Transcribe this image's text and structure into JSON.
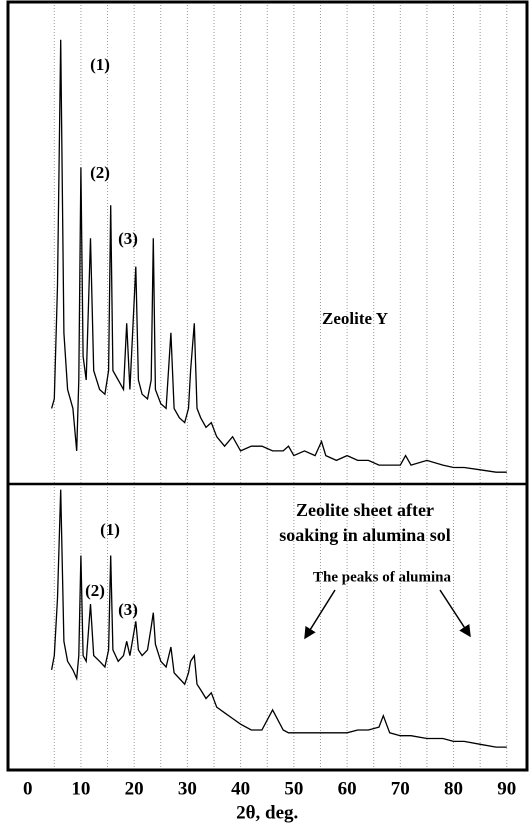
{
  "chart_data": [
    {
      "type": "line",
      "label": "Zeolite Y",
      "annotations": [
        "(1)",
        "(2)",
        "(3)"
      ],
      "color": "#000000",
      "xlim": [
        -3.7,
        93.8
      ],
      "ylim": [
        -2,
        100
      ],
      "xgrid": [
        5,
        10,
        15,
        20,
        25,
        30,
        35,
        40,
        45,
        50,
        55,
        60,
        65,
        70,
        75,
        80,
        85,
        90
      ],
      "x": [
        4.5,
        5,
        5.6,
        6.2,
        6.8,
        7.5,
        8.5,
        9.2,
        9.6,
        10,
        10.4,
        11,
        11.8,
        12.4,
        13.5,
        14.5,
        15.2,
        15.6,
        16,
        17,
        18,
        18.6,
        19.2,
        20.3,
        20.8,
        21.5,
        22.5,
        23.2,
        23.6,
        24,
        25,
        26,
        26.9,
        27.5,
        28.5,
        29.5,
        30.2,
        30.6,
        31.3,
        31.8,
        32.5,
        33.5,
        34.5,
        35.5,
        37,
        38.5,
        40,
        42,
        44,
        46,
        48,
        49,
        50,
        52,
        54,
        55.2,
        56,
        58,
        60,
        62,
        64,
        66,
        66.8,
        68,
        70,
        71,
        72,
        75,
        78,
        80,
        82,
        85,
        88,
        90
      ],
      "values": [
        14,
        16,
        40,
        92,
        30,
        18,
        14,
        5,
        20,
        65,
        25,
        20,
        50,
        22,
        18,
        17,
        22,
        57,
        22,
        20,
        18,
        32,
        18,
        44,
        20,
        17,
        16,
        20,
        50,
        18,
        15,
        14,
        30,
        14,
        12,
        11,
        14,
        22,
        32,
        14,
        12,
        10,
        11,
        8,
        6,
        8,
        5,
        6,
        6,
        5,
        5,
        6,
        4,
        5,
        4,
        7,
        4,
        3,
        4,
        3,
        3,
        2,
        2,
        2,
        2,
        4,
        2,
        3,
        2,
        1.5,
        1.5,
        1,
        0.5,
        0.5
      ]
    },
    {
      "type": "line",
      "label_lines": [
        "Zeolite sheet after",
        "soaking in alumina sol"
      ],
      "annotations": [
        "(1)",
        "(2)",
        "(3)",
        "The peaks of alumina"
      ],
      "color": "#000000",
      "xlim": [
        -3.7,
        93.8
      ],
      "ylim": [
        0,
        100
      ],
      "xticks": [
        0,
        10,
        20,
        30,
        40,
        50,
        60,
        70,
        80,
        90
      ],
      "xlabel": "2θ, deg.",
      "xgrid": [
        5,
        10,
        15,
        20,
        25,
        30,
        35,
        40,
        45,
        50,
        55,
        60,
        65,
        70,
        75,
        80,
        85,
        90
      ],
      "x": [
        4.5,
        5,
        5.6,
        6.2,
        6.8,
        7.5,
        8.5,
        9.2,
        9.6,
        10,
        10.4,
        11,
        11.8,
        12.4,
        13.5,
        14.5,
        15.2,
        15.6,
        16,
        17,
        18,
        18.6,
        19.2,
        20.3,
        20.8,
        21.5,
        22.5,
        23.2,
        23.6,
        24,
        25,
        26,
        26.9,
        27.5,
        28.5,
        29.5,
        30.2,
        30.6,
        31.3,
        31.8,
        32.5,
        33.5,
        34.5,
        35.5,
        37,
        38.5,
        40,
        42,
        44,
        46,
        48,
        49,
        50,
        52,
        54,
        55.2,
        56,
        58,
        60,
        62,
        64,
        66,
        66.8,
        68,
        70,
        71,
        72,
        75,
        78,
        80,
        82,
        85,
        88,
        90
      ],
      "values": [
        35,
        40,
        60,
        98,
        45,
        38,
        35,
        32,
        40,
        75,
        40,
        38,
        58,
        40,
        38,
        36,
        42,
        75,
        42,
        38,
        40,
        45,
        40,
        52,
        42,
        40,
        42,
        50,
        55,
        44,
        38,
        36,
        43,
        34,
        32,
        30,
        34,
        38,
        40,
        30,
        28,
        25,
        27,
        22,
        20,
        18,
        16,
        14,
        14,
        21,
        14,
        13,
        13,
        13,
        13,
        13,
        13,
        13,
        13,
        14,
        14,
        15,
        19,
        13,
        12,
        12,
        12,
        11,
        11,
        10,
        10,
        9,
        8,
        8
      ]
    }
  ]
}
